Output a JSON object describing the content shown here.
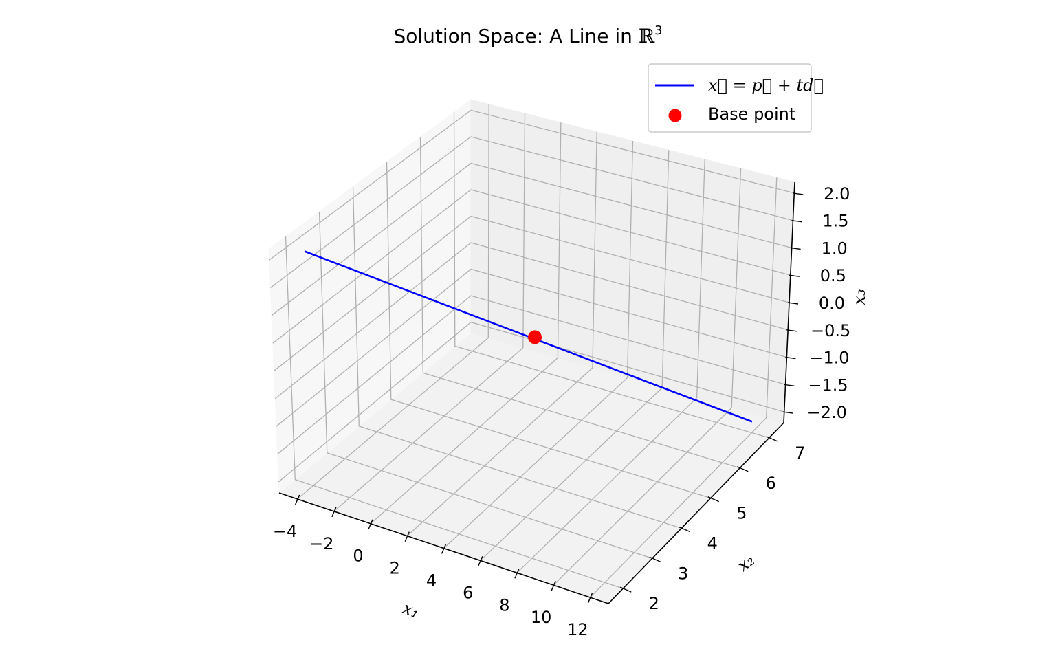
{
  "chart_data": {
    "type": "line",
    "title": "Solution Space: A Line in ℝ³",
    "title_parts": {
      "text": "Solution Space: A Line in ",
      "symbol": "ℝ",
      "exponent": "3"
    },
    "xlabel": "x₁",
    "ylabel": "x₂",
    "zlabel": "x₃",
    "x_ticks": [
      "−4",
      "−2",
      "0",
      "2",
      "4",
      "6",
      "8",
      "10",
      "12"
    ],
    "y_ticks": [
      "2",
      "3",
      "4",
      "5",
      "6",
      "7"
    ],
    "z_ticks": [
      "2.0",
      "1.5",
      "1.0",
      "0.5",
      "0.0",
      "−0.5",
      "−1.0",
      "−1.5",
      "−2.0"
    ],
    "xlim": [
      -5,
      13
    ],
    "ylim": [
      1.5,
      7.5
    ],
    "zlim": [
      -2.2,
      2.2
    ],
    "series": [
      {
        "name": "x⃗ = p⃗ + td⃗",
        "kind": "line",
        "color": "#0000ff",
        "x": [
          -4,
          12
        ],
        "y": [
          2,
          7
        ],
        "z": [
          2,
          -2
        ]
      },
      {
        "name": "Base point",
        "kind": "scatter",
        "color": "#ff0000",
        "x": [
          4
        ],
        "y": [
          4.5
        ],
        "z": [
          0
        ]
      }
    ],
    "legend": {
      "placement": "upper-right",
      "entries": [
        {
          "label": "x⃗ = p⃗ + td⃗",
          "marker": "line",
          "color": "#0000ff"
        },
        {
          "label": "Base point",
          "marker": "dot",
          "color": "#ff0000"
        }
      ]
    },
    "grid": true,
    "pane_color": "#f2f2f2",
    "grid_color": "#b0b0b0"
  }
}
